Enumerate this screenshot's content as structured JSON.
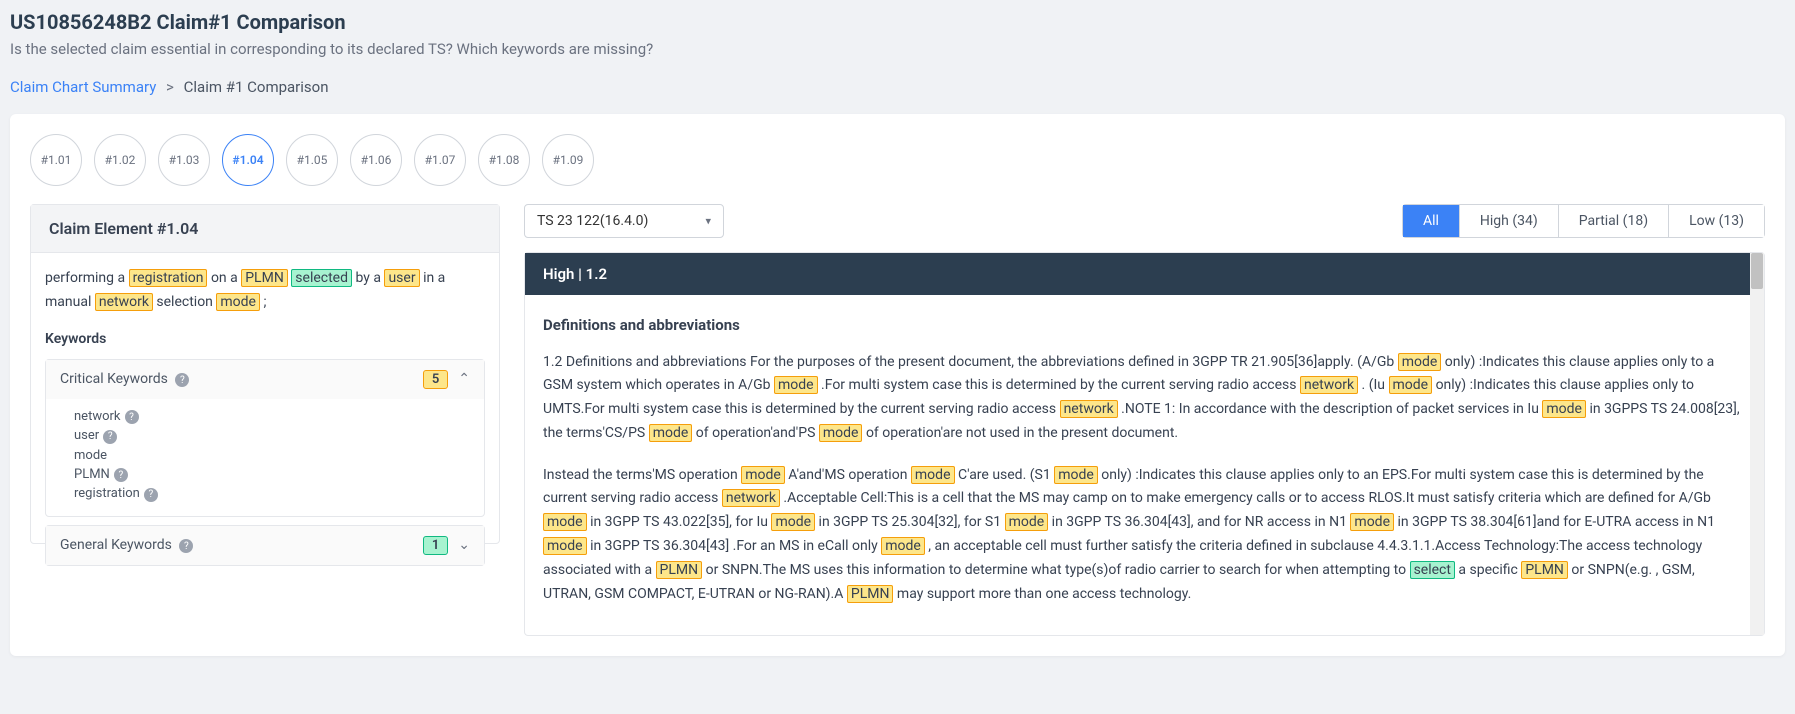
{
  "header": {
    "title": "US10856248B2 Claim#1 Comparison",
    "subtitle": "Is the selected claim essential in corresponding to its declared TS? Which keywords are missing?"
  },
  "breadcrumb": {
    "root": "Claim Chart Summary",
    "current": "Claim #1 Comparison"
  },
  "chips": [
    "#1.01",
    "#1.02",
    "#1.03",
    "#1.04",
    "#1.05",
    "#1.06",
    "#1.07",
    "#1.08",
    "#1.09"
  ],
  "activeChip": "#1.04",
  "leftPanel": {
    "title": "Claim Element #1.04",
    "claimSegments": [
      {
        "t": "performing a "
      },
      {
        "t": "registration",
        "cls": "hl-yellow"
      },
      {
        "t": " on a "
      },
      {
        "t": "PLMN",
        "cls": "hl-yellow"
      },
      {
        "t": " "
      },
      {
        "t": "selected",
        "cls": "hl-green"
      },
      {
        "t": " by a "
      },
      {
        "t": "user",
        "cls": "hl-yellow"
      },
      {
        "t": " in a manual "
      },
      {
        "t": "network",
        "cls": "hl-yellow"
      },
      {
        "t": " selection "
      },
      {
        "t": "mode",
        "cls": "hl-yellow"
      },
      {
        "t": " ;"
      }
    ],
    "keywordsLabel": "Keywords",
    "critical": {
      "label": "Critical Keywords",
      "count": "5",
      "items": [
        {
          "t": "network",
          "help": true
        },
        {
          "t": "user",
          "help": true
        },
        {
          "t": "mode",
          "help": false
        },
        {
          "t": "PLMN",
          "help": true
        },
        {
          "t": "registration",
          "help": true
        }
      ]
    },
    "general": {
      "label": "General Keywords",
      "count": "1"
    }
  },
  "rightControls": {
    "select": "TS 23 122(16.4.0)",
    "tabs": [
      {
        "label": "All",
        "active": true
      },
      {
        "label": "High (34)"
      },
      {
        "label": "Partial (18)"
      },
      {
        "label": "Low (13)"
      }
    ]
  },
  "tsPanel": {
    "header": "High  |  1.2",
    "subtitle": "Definitions and abbreviations",
    "para1": [
      {
        "t": "1.2 Definitions and abbreviations For the purposes of the present document, the abbreviations defined in 3GPP TR 21.905[36]apply. (A/Gb "
      },
      {
        "t": "mode",
        "cls": "hl-yellow"
      },
      {
        "t": " only) :Indicates this clause applies only to a GSM system which operates in A/Gb "
      },
      {
        "t": "mode",
        "cls": "hl-yellow"
      },
      {
        "t": " .For multi system case this is determined by the current serving radio access "
      },
      {
        "t": "network",
        "cls": "hl-yellow"
      },
      {
        "t": " . (Iu "
      },
      {
        "t": "mode",
        "cls": "hl-yellow"
      },
      {
        "t": " only) :Indicates this clause applies only to UMTS.For multi system case this is determined by the current serving radio access "
      },
      {
        "t": "network",
        "cls": "hl-yellow"
      },
      {
        "t": " .NOTE 1: In accordance with the description of packet services in Iu "
      },
      {
        "t": "mode",
        "cls": "hl-yellow"
      },
      {
        "t": " in 3GPPS TS 24.008[23], the terms'CS/PS "
      },
      {
        "t": "mode",
        "cls": "hl-yellow"
      },
      {
        "t": " of operation'and'PS "
      },
      {
        "t": "mode",
        "cls": "hl-yellow"
      },
      {
        "t": " of operation'are not used in the present document."
      }
    ],
    "para2": [
      {
        "t": "Instead the terms'MS operation "
      },
      {
        "t": "mode",
        "cls": "hl-yellow"
      },
      {
        "t": " A'and'MS operation "
      },
      {
        "t": "mode",
        "cls": "hl-yellow"
      },
      {
        "t": " C'are used. (S1 "
      },
      {
        "t": "mode",
        "cls": "hl-yellow"
      },
      {
        "t": " only) :Indicates this clause applies only to an EPS.For multi system case this is determined by the current serving radio access "
      },
      {
        "t": "network",
        "cls": "hl-yellow"
      },
      {
        "t": " .Acceptable Cell:This is a cell that the MS may camp on to make emergency calls or to access RLOS.It must satisfy criteria which are defined for A/Gb "
      },
      {
        "t": "mode",
        "cls": "hl-yellow"
      },
      {
        "t": " in 3GPP TS 43.022[35], for Iu "
      },
      {
        "t": "mode",
        "cls": "hl-yellow"
      },
      {
        "t": " in 3GPP TS 25.304[32], for S1 "
      },
      {
        "t": "mode",
        "cls": "hl-yellow"
      },
      {
        "t": " in 3GPP TS 36.304[43], and for NR access in N1 "
      },
      {
        "t": "mode",
        "cls": "hl-yellow"
      },
      {
        "t": " in 3GPP TS 38.304[61]and for E-UTRA access in N1 "
      },
      {
        "t": "mode",
        "cls": "hl-yellow"
      },
      {
        "t": " in 3GPP TS 36.304[43] .For an MS in eCall only "
      },
      {
        "t": "mode",
        "cls": "hl-yellow"
      },
      {
        "t": " , an acceptable cell must further satisfy the criteria defined in subclause 4.4.3.1.1.Access Technology:The access technology associated with a "
      },
      {
        "t": "PLMN",
        "cls": "hl-yellow"
      },
      {
        "t": " or SNPN.The MS uses this information to determine what type(s)of radio carrier to search for when attempting to "
      },
      {
        "t": "select",
        "cls": "hl-green"
      },
      {
        "t": " a specific "
      },
      {
        "t": "PLMN",
        "cls": "hl-yellow"
      },
      {
        "t": " or SNPN(e.g. , GSM, UTRAN, GSM COMPACT, E-UTRAN or NG-RAN).A "
      },
      {
        "t": "PLMN",
        "cls": "hl-yellow"
      },
      {
        "t": " may support more than one access technology."
      }
    ]
  }
}
